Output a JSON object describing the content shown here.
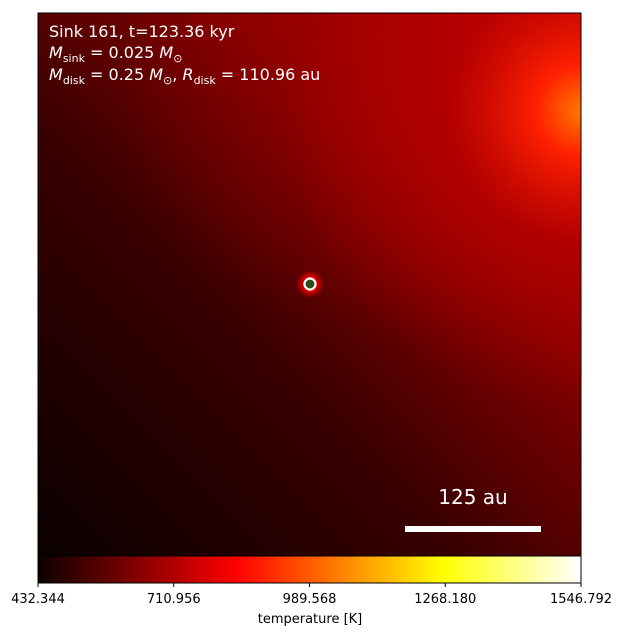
{
  "chart_data": {
    "type": "image",
    "annotation": {
      "line1": "Sink 161, t=123.36 kyr",
      "line2": [
        "M",
        "sink",
        " = 0.025 ",
        "M",
        "⊙"
      ],
      "line3": [
        "M",
        "disk",
        " = 0.25 ",
        "M",
        "⊙",
        ", ",
        "R",
        "disk",
        " = 110.96 au"
      ]
    },
    "scale_bar_label": "125 au",
    "colorbar": {
      "label": "temperature [K]",
      "cmap": "hot",
      "lim": [
        432.344,
        1546.792
      ],
      "ticks": [
        432.344,
        710.956,
        989.568,
        {
          "value": 1268.18,
          "label": "1268.180"
        },
        1546.792
      ]
    }
  }
}
